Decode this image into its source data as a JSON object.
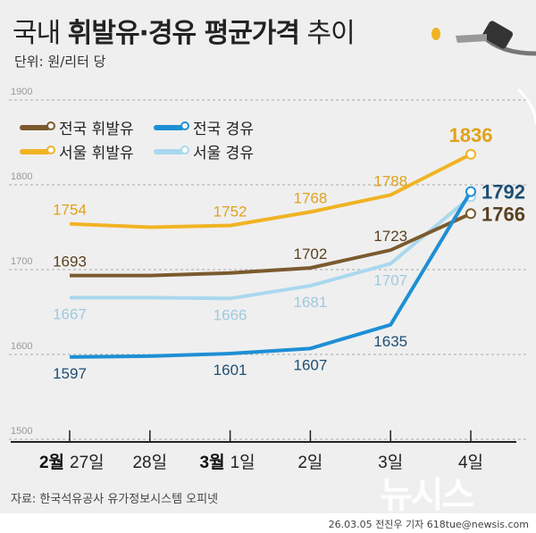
{
  "title": {
    "part1": "국내",
    "part2": "휘발유·경유 평균가격",
    "part3": "추이"
  },
  "unit": "단위: 원/리터 당",
  "source": "자료: 한국석유공사 유가정보시스템 오피넷",
  "credit": "26.03.05 전진우 기자 618tue@newsis.com",
  "logo": "뉴시스",
  "chart_data": {
    "type": "line",
    "categories": [
      "27일",
      "28일",
      "1일",
      "2일",
      "3일",
      "4일"
    ],
    "month_labels": {
      "0": "2월",
      "2": "3월"
    },
    "ylim": [
      1500,
      1900
    ],
    "yticks": [
      1500,
      1600,
      1700,
      1800,
      1900
    ],
    "grid": true,
    "legend_position": "top-left",
    "series": [
      {
        "name": "전국 휘발유",
        "color": "#7b5a2e",
        "values": [
          1693,
          1693,
          1696,
          1702,
          1723,
          1766
        ],
        "labels": [
          "1693",
          null,
          null,
          "1702",
          "1723",
          "1766"
        ]
      },
      {
        "name": "전국 경유",
        "color": "#1e8fd5",
        "values": [
          1597,
          1598,
          1601,
          1607,
          1635,
          1792
        ],
        "labels": [
          "1597",
          null,
          "1601",
          "1607",
          "1635",
          "1792"
        ]
      },
      {
        "name": "서울 휘발유",
        "color": "#f0b323",
        "values": [
          1754,
          1750,
          1752,
          1768,
          1788,
          1836
        ],
        "labels": [
          "1754",
          null,
          "1752",
          "1768",
          "1788",
          "1836"
        ]
      },
      {
        "name": "서울 경유",
        "color": "#a9d8ee",
        "values": [
          1667,
          1667,
          1666,
          1681,
          1707,
          1786
        ],
        "labels": [
          "1667",
          null,
          "1666",
          "1681",
          "1707",
          null
        ]
      }
    ]
  }
}
